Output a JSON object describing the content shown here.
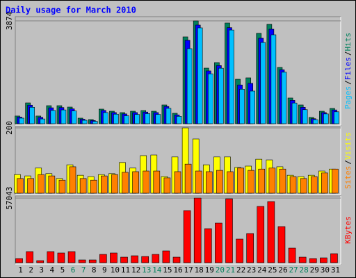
{
  "chart_data": {
    "type": "bar",
    "title": "Daily usage for March 2010",
    "categories": [
      "1",
      "2",
      "3",
      "4",
      "5",
      "6",
      "7",
      "8",
      "9",
      "10",
      "11",
      "12",
      "13",
      "14",
      "15",
      "16",
      "17",
      "18",
      "19",
      "20",
      "21",
      "22",
      "23",
      "24",
      "25",
      "26",
      "27",
      "28",
      "29",
      "30",
      "31"
    ],
    "category_colors": [
      "#000000",
      "#000000",
      "#000000",
      "#000000",
      "#000000",
      "#00805c",
      "#00805c",
      "#000000",
      "#000000",
      "#000000",
      "#000000",
      "#000000",
      "#00805c",
      "#00805c",
      "#000000",
      "#000000",
      "#000000",
      "#000000",
      "#000000",
      "#00805c",
      "#00805c",
      "#000000",
      "#000000",
      "#000000",
      "#000000",
      "#000000",
      "#00805c",
      "#00805c",
      "#000000",
      "#000000",
      "#000000"
    ],
    "legend_separator": "/",
    "panels": [
      {
        "ylim": [
          0,
          3874
        ],
        "yticks": [
          3874
        ],
        "grid": true,
        "series": [
          {
            "name": "Hits",
            "color": "#00805c",
            "values": [
              290,
              785,
              290,
              680,
              680,
              628,
              210,
              157,
              550,
              471,
              419,
              471,
              497,
              471,
              707,
              393,
              3272,
              3874,
              2094,
              2303,
              3795,
              1675,
              1728,
              3403,
              3743,
              2120,
              969,
              707,
              236,
              471,
              576
            ]
          },
          {
            "name": "Files",
            "color": "#0000ff",
            "values": [
              250,
              700,
              240,
              600,
              610,
              560,
              170,
              120,
              500,
              420,
              370,
              420,
              440,
              420,
              650,
              330,
              3141,
              3717,
              1990,
              2190,
              3620,
              1460,
              1520,
              3220,
              3560,
              2030,
              880,
              620,
              190,
              420,
              520
            ]
          },
          {
            "name": "Pages",
            "color": "#00c0ff",
            "values": [
              210,
              620,
              180,
              500,
              520,
              480,
              130,
              90,
              420,
              360,
              300,
              350,
              380,
              350,
              580,
              280,
              2827,
              3612,
              1880,
              2090,
              3530,
              1300,
              1230,
              3060,
              3350,
              1940,
              780,
              530,
              150,
              370,
              450
            ]
          }
        ]
      },
      {
        "ylim": [
          0,
          200
        ],
        "yticks": [
          200
        ],
        "grid": true,
        "series": [
          {
            "name": "Visits",
            "color": "#ffff00",
            "values": [
              57,
              53,
              77,
              60,
              45,
              87,
              55,
              51,
              57,
              60,
              94,
              77,
              115,
              117,
              51,
              111,
              200,
              166,
              87,
              111,
              111,
              79,
              83,
              104,
              102,
              81,
              55,
              51,
              55,
              68,
              74
            ]
          },
          {
            "name": "Sites",
            "color": "#ff8000",
            "values": [
              45,
              45,
              57,
              53,
              40,
              81,
              45,
              40,
              53,
              57,
              64,
              66,
              68,
              68,
              47,
              66,
              89,
              68,
              66,
              70,
              66,
              77,
              70,
              74,
              77,
              74,
              51,
              45,
              51,
              62,
              74
            ]
          }
        ]
      },
      {
        "ylim": [
          0,
          57043
        ],
        "yticks": [
          57043
        ],
        "grid": true,
        "series": [
          {
            "name": "KBytes",
            "color": "#ff0000",
            "values": [
              3680,
              9814,
              1840,
              9814,
              8587,
              9814,
              2453,
              2453,
              7360,
              8587,
              4907,
              6134,
              5520,
              7360,
              10427,
              4907,
              46002,
              57043,
              30054,
              34961,
              56430,
              20854,
              25761,
              49681,
              53974,
              31894,
              12880,
              4907,
              3680,
              4293,
              7974
            ]
          }
        ]
      }
    ]
  }
}
